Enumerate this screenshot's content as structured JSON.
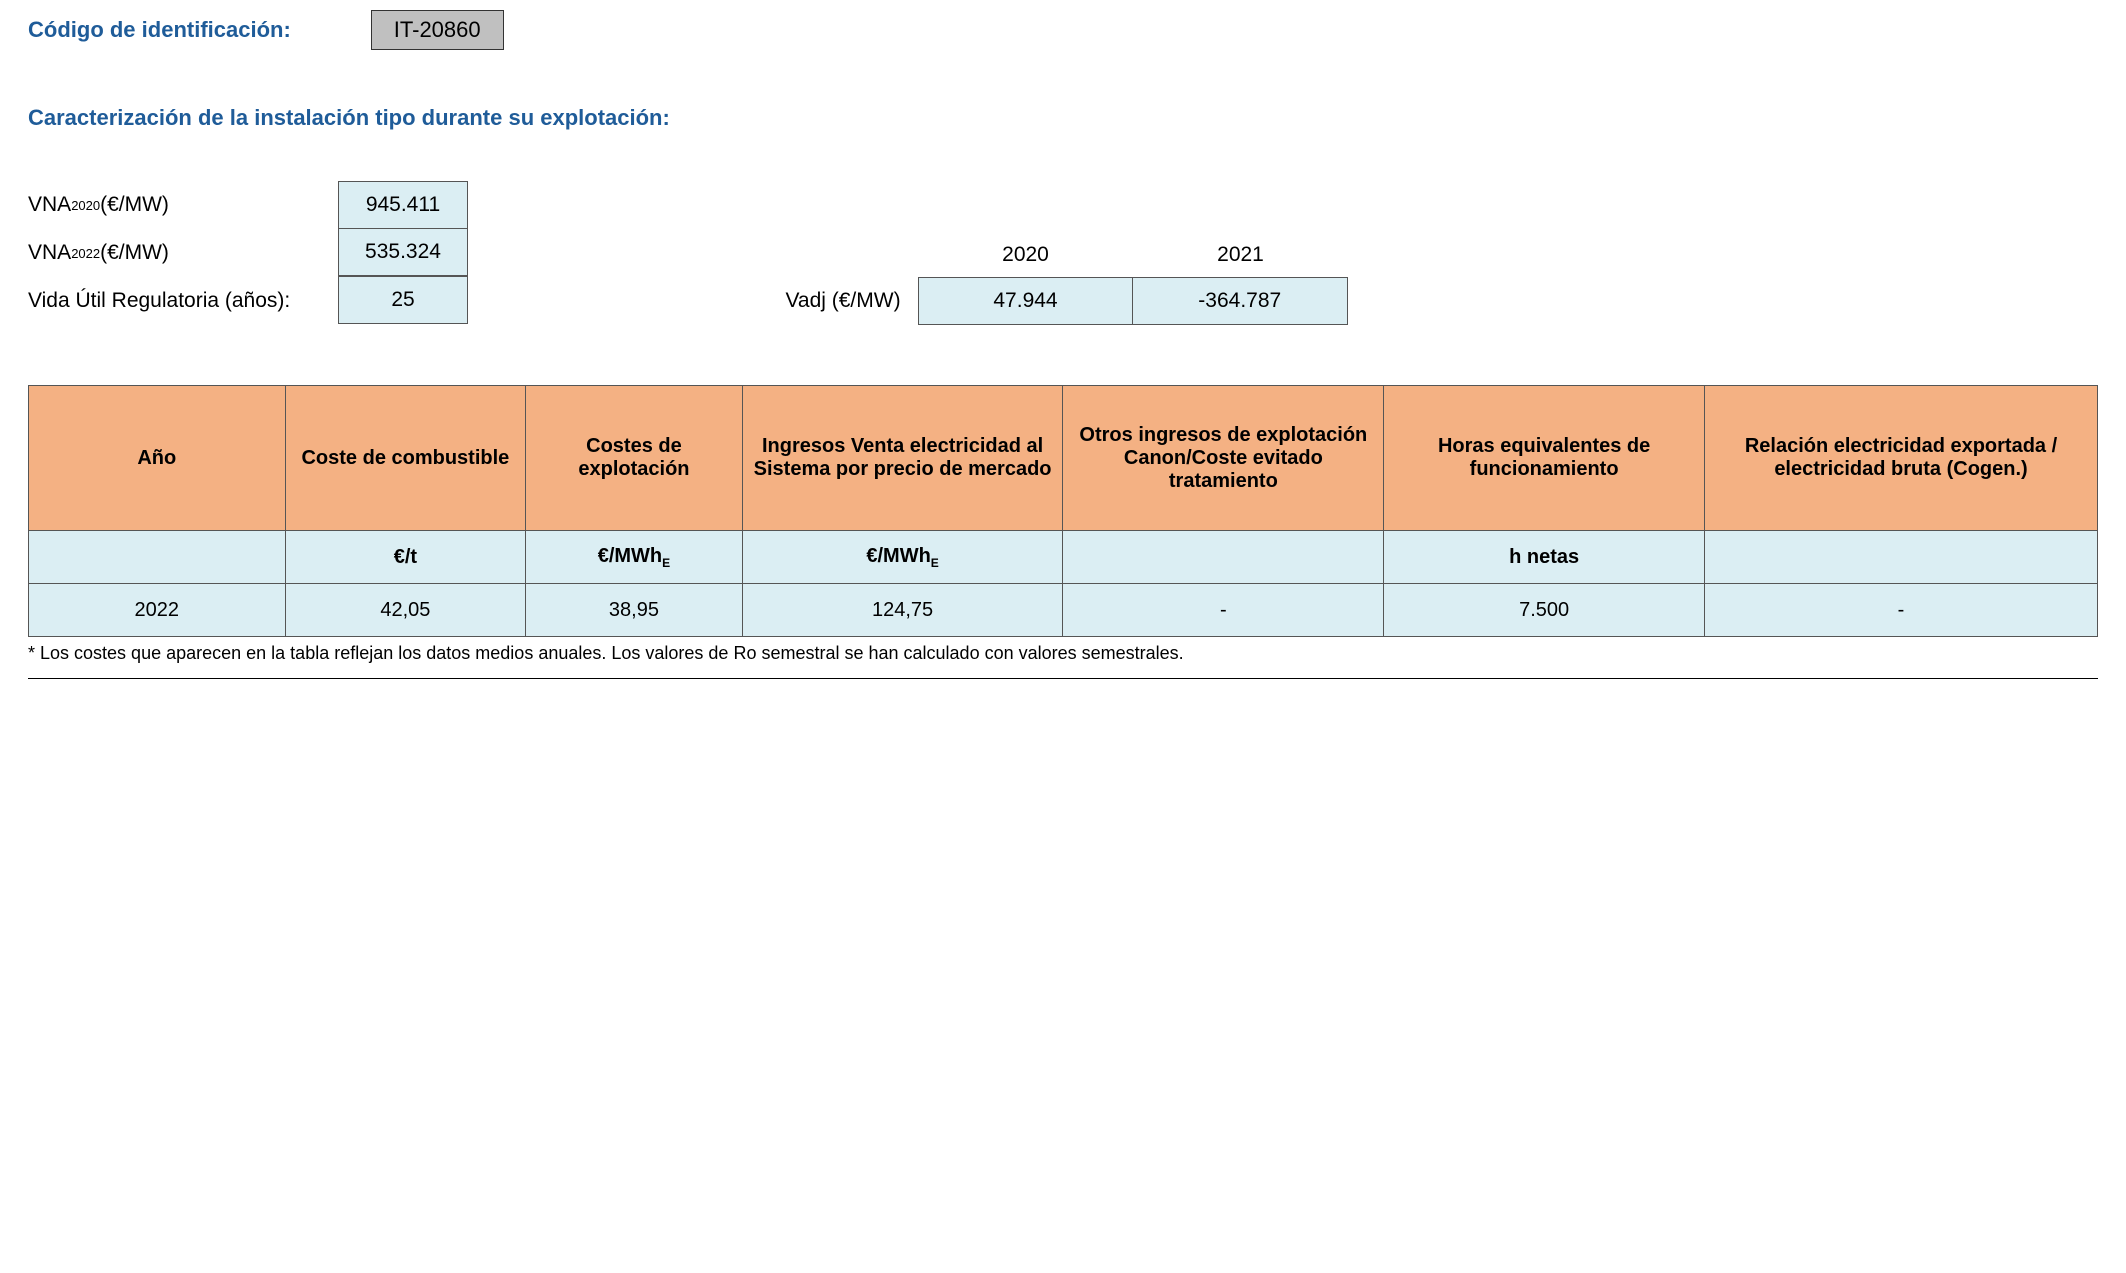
{
  "header": {
    "id_label": "Código de identificación:",
    "id_value": "IT-20860"
  },
  "section_title": "Caracterización de la instalación tipo durante su explotación:",
  "params": {
    "vna2020_label_pre": "VNA",
    "vna2020_sub": "2020",
    "vna2020_label_post": " (€/MW)",
    "vna2020_value": "945.411",
    "vna2022_label_pre": "VNA",
    "vna2022_sub": "2022",
    "vna2022_label_post": " (€/MW)",
    "vna2022_value": "535.324",
    "vida_label": "Vida Útil Regulatoria (años):",
    "vida_value": "25"
  },
  "vadj": {
    "label": "Vadj (€/MW)",
    "years": [
      "2020",
      "2021"
    ],
    "values": [
      "47.944",
      "-364.787"
    ]
  },
  "table": {
    "headers": {
      "ano": "Año",
      "combustible": "Coste de combustible",
      "explotacion": "Costes de explotación",
      "ingresos": "Ingresos Venta electricidad al Sistema por precio de mercado",
      "otros": "Otros ingresos de explotación Canon/Coste evitado tratamiento",
      "horas": "Horas equivalentes de funcionamiento",
      "relacion": "Relación electricidad exportada / electricidad bruta (Cogen.)"
    },
    "units": {
      "ano": "",
      "combustible": "€/t",
      "explotacion_pre": "€/MWh",
      "explotacion_sub": "E",
      "ingresos_pre": "€/MWh",
      "ingresos_sub": "E",
      "otros": "",
      "horas": "h netas",
      "relacion": ""
    },
    "row": {
      "ano": "2022",
      "combustible": "42,05",
      "explotacion": "38,95",
      "ingresos": "124,75",
      "otros": "-",
      "horas": "7.500",
      "relacion": "-"
    }
  },
  "footnote": "* Los costes que aparecen en la tabla reflejan los datos medios anuales. Los valores de Ro semestral se han calculado con valores semestrales.",
  "colors": {
    "header_bg": "#f4b183",
    "cell_bg": "#dbeef3",
    "id_bg": "#c0c0c0",
    "blue": "#1f5c99",
    "border": "#555555"
  }
}
